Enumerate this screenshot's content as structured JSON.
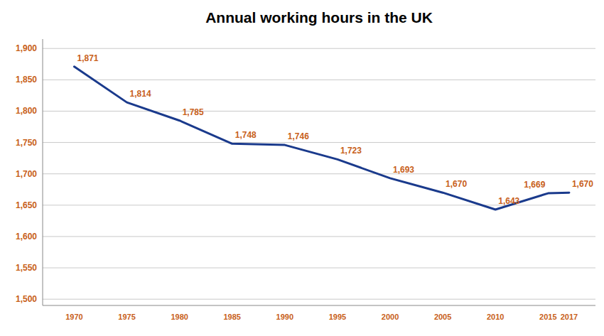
{
  "chart_data": {
    "type": "line",
    "title": "Annual working hours in the UK",
    "x": [
      1970,
      1975,
      1980,
      1985,
      1990,
      1995,
      2000,
      2005,
      2010,
      2015,
      2017
    ],
    "values": [
      1871,
      1814,
      1785,
      1748,
      1746,
      1723,
      1693,
      1670,
      1643,
      1669,
      1670
    ],
    "value_labels": [
      "1,871",
      "1,814",
      "1,785",
      "1,748",
      "1,746",
      "1,723",
      "1,693",
      "1,670",
      "1,643",
      "1,669",
      "1,670"
    ],
    "color": "#1a3a8c",
    "xlim": [
      1967,
      2019.5
    ],
    "xticks": [
      1970,
      1975,
      1980,
      1985,
      1990,
      1995,
      2000,
      2005,
      2010,
      2015,
      2017
    ],
    "ylim": [
      1490,
      1915
    ],
    "yticks": [
      {
        "value": 1500,
        "label": "1,500"
      },
      {
        "value": 1550,
        "label": "1,550"
      },
      {
        "value": 1600,
        "label": "1,600"
      },
      {
        "value": 1650,
        "label": "1,650"
      },
      {
        "value": 1700,
        "label": "1,700"
      },
      {
        "value": 1750,
        "label": "1,750"
      },
      {
        "value": 1800,
        "label": "1,800"
      },
      {
        "value": 1850,
        "label": "1,850"
      },
      {
        "value": 1900,
        "label": "1,900"
      }
    ],
    "grid": true,
    "data_labels": true
  }
}
